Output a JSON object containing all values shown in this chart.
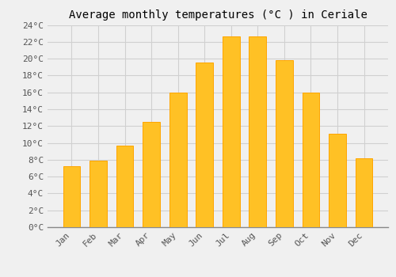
{
  "title": "Average monthly temperatures (°C ) in Ceriale",
  "months": [
    "Jan",
    "Feb",
    "Mar",
    "Apr",
    "May",
    "Jun",
    "Jul",
    "Aug",
    "Sep",
    "Oct",
    "Nov",
    "Dec"
  ],
  "temperatures": [
    7.2,
    7.9,
    9.7,
    12.5,
    16.0,
    19.5,
    22.6,
    22.6,
    19.8,
    16.0,
    11.1,
    8.2
  ],
  "bar_color": "#FFC125",
  "bar_edge_color": "#FFA500",
  "background_color": "#f0f0f0",
  "grid_color": "#d0d0d0",
  "ylim": [
    0,
    24
  ],
  "yticks": [
    0,
    2,
    4,
    6,
    8,
    10,
    12,
    14,
    16,
    18,
    20,
    22,
    24
  ],
  "title_fontsize": 10,
  "tick_fontsize": 8,
  "font_family": "monospace"
}
